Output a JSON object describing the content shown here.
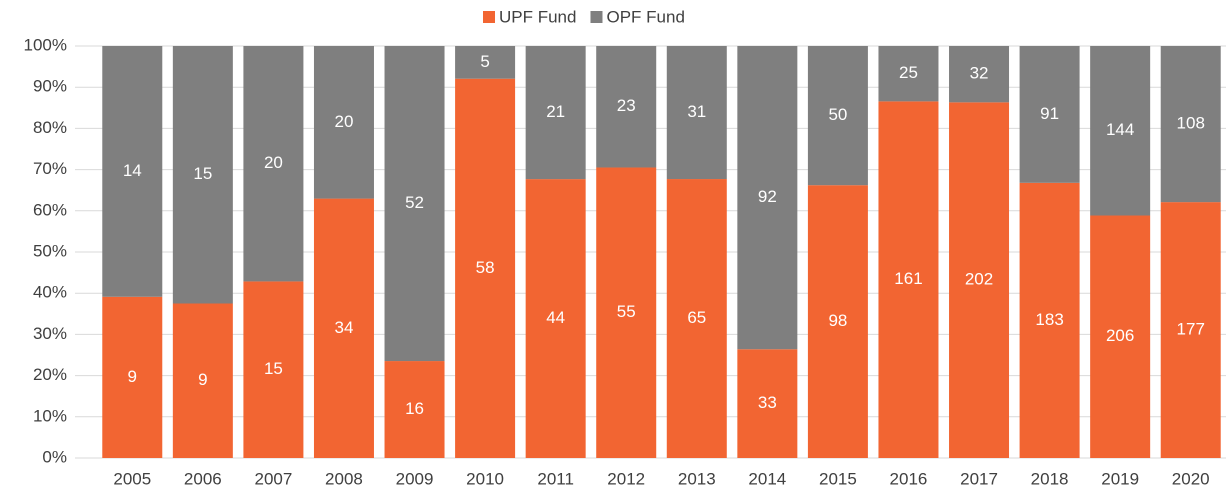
{
  "chart_data": {
    "type": "bar",
    "stacking": "percent",
    "categories": [
      "2005",
      "2006",
      "2007",
      "2008",
      "2009",
      "2010",
      "2011",
      "2012",
      "2013",
      "2014",
      "2015",
      "2016",
      "2017",
      "2018",
      "2019",
      "2020"
    ],
    "series": [
      {
        "name": "UPF Fund",
        "color": "#f26532",
        "values": [
          9,
          9,
          15,
          34,
          16,
          58,
          44,
          55,
          65,
          33,
          98,
          161,
          202,
          183,
          206,
          177
        ]
      },
      {
        "name": "OPF Fund",
        "color": "#7f7f7f",
        "values": [
          14,
          15,
          20,
          20,
          52,
          5,
          21,
          23,
          31,
          92,
          50,
          25,
          32,
          91,
          144,
          108
        ]
      }
    ],
    "ylim": [
      0,
      100
    ],
    "yticks": [
      {
        "value": 0,
        "label": "0%"
      },
      {
        "value": 10,
        "label": "10%"
      },
      {
        "value": 20,
        "label": "20%"
      },
      {
        "value": 30,
        "label": "30%"
      },
      {
        "value": 40,
        "label": "40%"
      },
      {
        "value": 50,
        "label": "50%"
      },
      {
        "value": 60,
        "label": "60%"
      },
      {
        "value": 70,
        "label": "70%"
      },
      {
        "value": 80,
        "label": "80%"
      },
      {
        "value": 90,
        "label": "90%"
      },
      {
        "value": 100,
        "label": "100%"
      }
    ],
    "grid": true,
    "legend": "top"
  }
}
